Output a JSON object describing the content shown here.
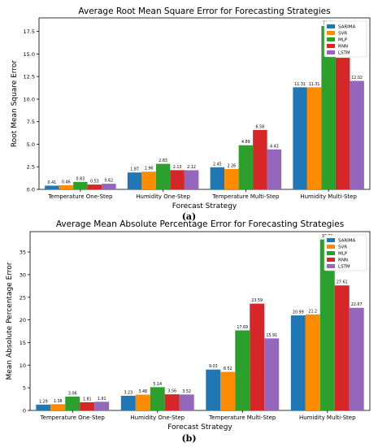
{
  "panel_labels": {
    "a": "(a)",
    "b": "(b)"
  },
  "colors": {
    "SARIMA": "#1f77b4",
    "SVR": "#ff8c00",
    "MLP": "#2ca02c",
    "RNN": "#d62728",
    "LSTM": "#9467bd"
  },
  "chart_data": [
    {
      "type": "bar",
      "title": "Average Root Mean Square Error for Forecasting Strategies",
      "xlabel": "Forecast Strategy",
      "ylabel": "Root Mean Square Error",
      "ylim": [
        0,
        19
      ],
      "yticks": [
        0.0,
        2.5,
        5.0,
        7.5,
        10.0,
        12.5,
        15.0,
        17.5
      ],
      "ytick_labels": [
        "0.0",
        "2.5",
        "5.0",
        "7.5",
        "10.0",
        "12.5",
        "15.0",
        "17.5"
      ],
      "legend_position": "top-right",
      "grid": false,
      "categories": [
        "Temperature One-Step",
        "Humidity One-Step",
        "Temperature Multi-Step",
        "Humidity Multi-Step"
      ],
      "series": [
        {
          "name": "SARIMA",
          "values": [
            0.41,
            1.87,
            2.45,
            11.31
          ],
          "labels": [
            "0.41",
            "1.87",
            "2.45",
            "11.31"
          ]
        },
        {
          "name": "SVR",
          "values": [
            0.46,
            1.96,
            2.26,
            11.31
          ],
          "labels": [
            "0.46",
            "1.96",
            "2.26",
            "11.31"
          ]
        },
        {
          "name": "MLP",
          "values": [
            0.83,
            2.83,
            4.89,
            18.11
          ],
          "labels": [
            "0.83",
            "2.83",
            "4.89",
            "18.11"
          ]
        },
        {
          "name": "RNN",
          "values": [
            0.53,
            2.13,
            6.58,
            14.58
          ],
          "labels": [
            "0.53",
            "2.13",
            "6.58",
            "14.58"
          ]
        },
        {
          "name": "LSTM",
          "values": [
            0.62,
            2.12,
            4.43,
            12.02
          ],
          "labels": [
            "0.62",
            "2.12",
            "4.43",
            "12.02"
          ]
        }
      ]
    },
    {
      "type": "bar",
      "title": "Average Mean Absolute Percentage Error for Forecasting Strategies",
      "xlabel": "Forecast Strategy",
      "ylabel": "Mean Absolute Percentage Error",
      "ylim": [
        0,
        39.5
      ],
      "yticks": [
        0,
        5,
        10,
        15,
        20,
        25,
        30,
        35
      ],
      "ytick_labels": [
        "0",
        "5",
        "10",
        "15",
        "20",
        "25",
        "30",
        "35"
      ],
      "legend_position": "top-right",
      "grid": false,
      "categories": [
        "Temperature One-Step",
        "Humidity One-Step",
        "Temperature Multi-Step",
        "Humidity Multi-Step"
      ],
      "series": [
        {
          "name": "SARIMA",
          "values": [
            1.29,
            3.23,
            9.03,
            20.99
          ],
          "labels": [
            "1.29",
            "3.23",
            "9.03",
            "20.99"
          ]
        },
        {
          "name": "SVR",
          "values": [
            1.38,
            3.48,
            8.52,
            21.2
          ],
          "labels": [
            "1.38",
            "3.48",
            "8.52",
            "21.2"
          ]
        },
        {
          "name": "MLP",
          "values": [
            3.06,
            5.14,
            17.69,
            37.78
          ],
          "labels": [
            "3.06",
            "5.14",
            "17.69",
            "37.78"
          ]
        },
        {
          "name": "RNN",
          "values": [
            1.81,
            3.56,
            23.59,
            27.61
          ],
          "labels": [
            "1.81",
            "3.56",
            "23.59",
            "27.61"
          ]
        },
        {
          "name": "LSTM",
          "values": [
            1.91,
            3.52,
            15.91,
            22.67
          ],
          "labels": [
            "1.91",
            "3.52",
            "15.91",
            "22.67"
          ]
        }
      ]
    }
  ]
}
